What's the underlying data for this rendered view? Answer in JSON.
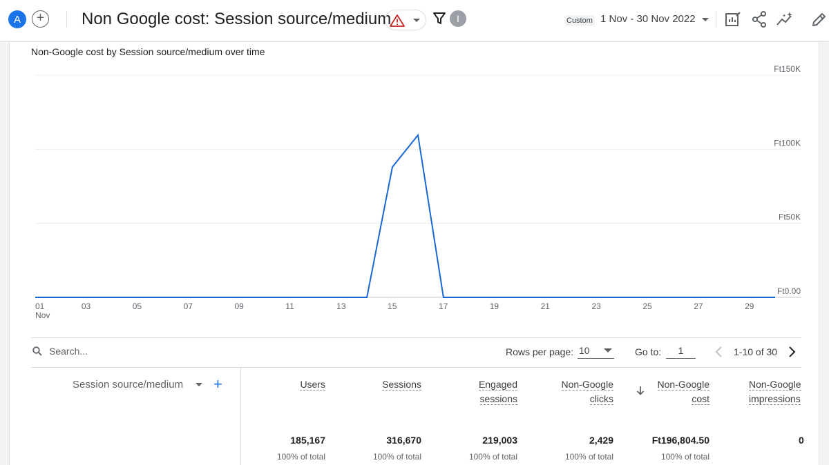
{
  "header": {
    "avatar_letter": "A",
    "add_label": "+",
    "title": "Non Google cost: Session source/medium",
    "info_letter": "I",
    "custom_badge": "Custom",
    "date_range": "1 Nov - 30 Nov 2022"
  },
  "chart_title": "Non-Google cost by Session source/medium over time",
  "chart_data": {
    "type": "line",
    "x": [
      "01",
      "02",
      "03",
      "04",
      "05",
      "06",
      "07",
      "08",
      "09",
      "10",
      "11",
      "12",
      "13",
      "14",
      "15",
      "16",
      "17",
      "18",
      "19",
      "20",
      "21",
      "22",
      "23",
      "24",
      "25",
      "26",
      "27",
      "28",
      "29",
      "30"
    ],
    "series": [
      {
        "values": [
          0,
          0,
          0,
          0,
          0,
          0,
          0,
          0,
          0,
          0,
          0,
          0,
          0,
          0,
          88000,
          109500,
          0,
          0,
          0,
          0,
          0,
          0,
          0,
          0,
          0,
          0,
          0,
          0,
          0,
          0
        ]
      }
    ],
    "x_ticks": [
      "01",
      "03",
      "05",
      "07",
      "09",
      "11",
      "13",
      "15",
      "17",
      "19",
      "21",
      "23",
      "25",
      "27",
      "29"
    ],
    "x_sub_label": "Nov",
    "y_ticks": [
      "Ft0.00",
      "Ft50K",
      "Ft100K",
      "Ft150K"
    ],
    "ylim": [
      0,
      150000
    ],
    "color": "#1967d2",
    "grid": true
  },
  "table": {
    "search_placeholder": "Search...",
    "rows_per_page_label": "Rows per page:",
    "rows_per_page_value": "10",
    "goto_label": "Go to:",
    "goto_value": "1",
    "page_range": "1-10 of 30",
    "dimension_header": "Session source/medium",
    "add_dimension": "+",
    "columns": [
      {
        "line1": "Users",
        "line2": "",
        "total": "185,167",
        "pct": "100% of total"
      },
      {
        "line1": "Sessions",
        "line2": "",
        "total": "316,670",
        "pct": "100% of total"
      },
      {
        "line1": "Engaged",
        "line2": "sessions",
        "total": "219,003",
        "pct": "100% of total"
      },
      {
        "line1": "Non-Google",
        "line2": "clicks",
        "total": "2,429",
        "pct": "100% of total"
      },
      {
        "line1": "Non-Google",
        "line2": "cost",
        "total": "Ft196,804.50",
        "pct": "100% of total"
      },
      {
        "line1": "Non-Google",
        "line2": "impressions",
        "total": "0",
        "pct": ""
      }
    ]
  }
}
